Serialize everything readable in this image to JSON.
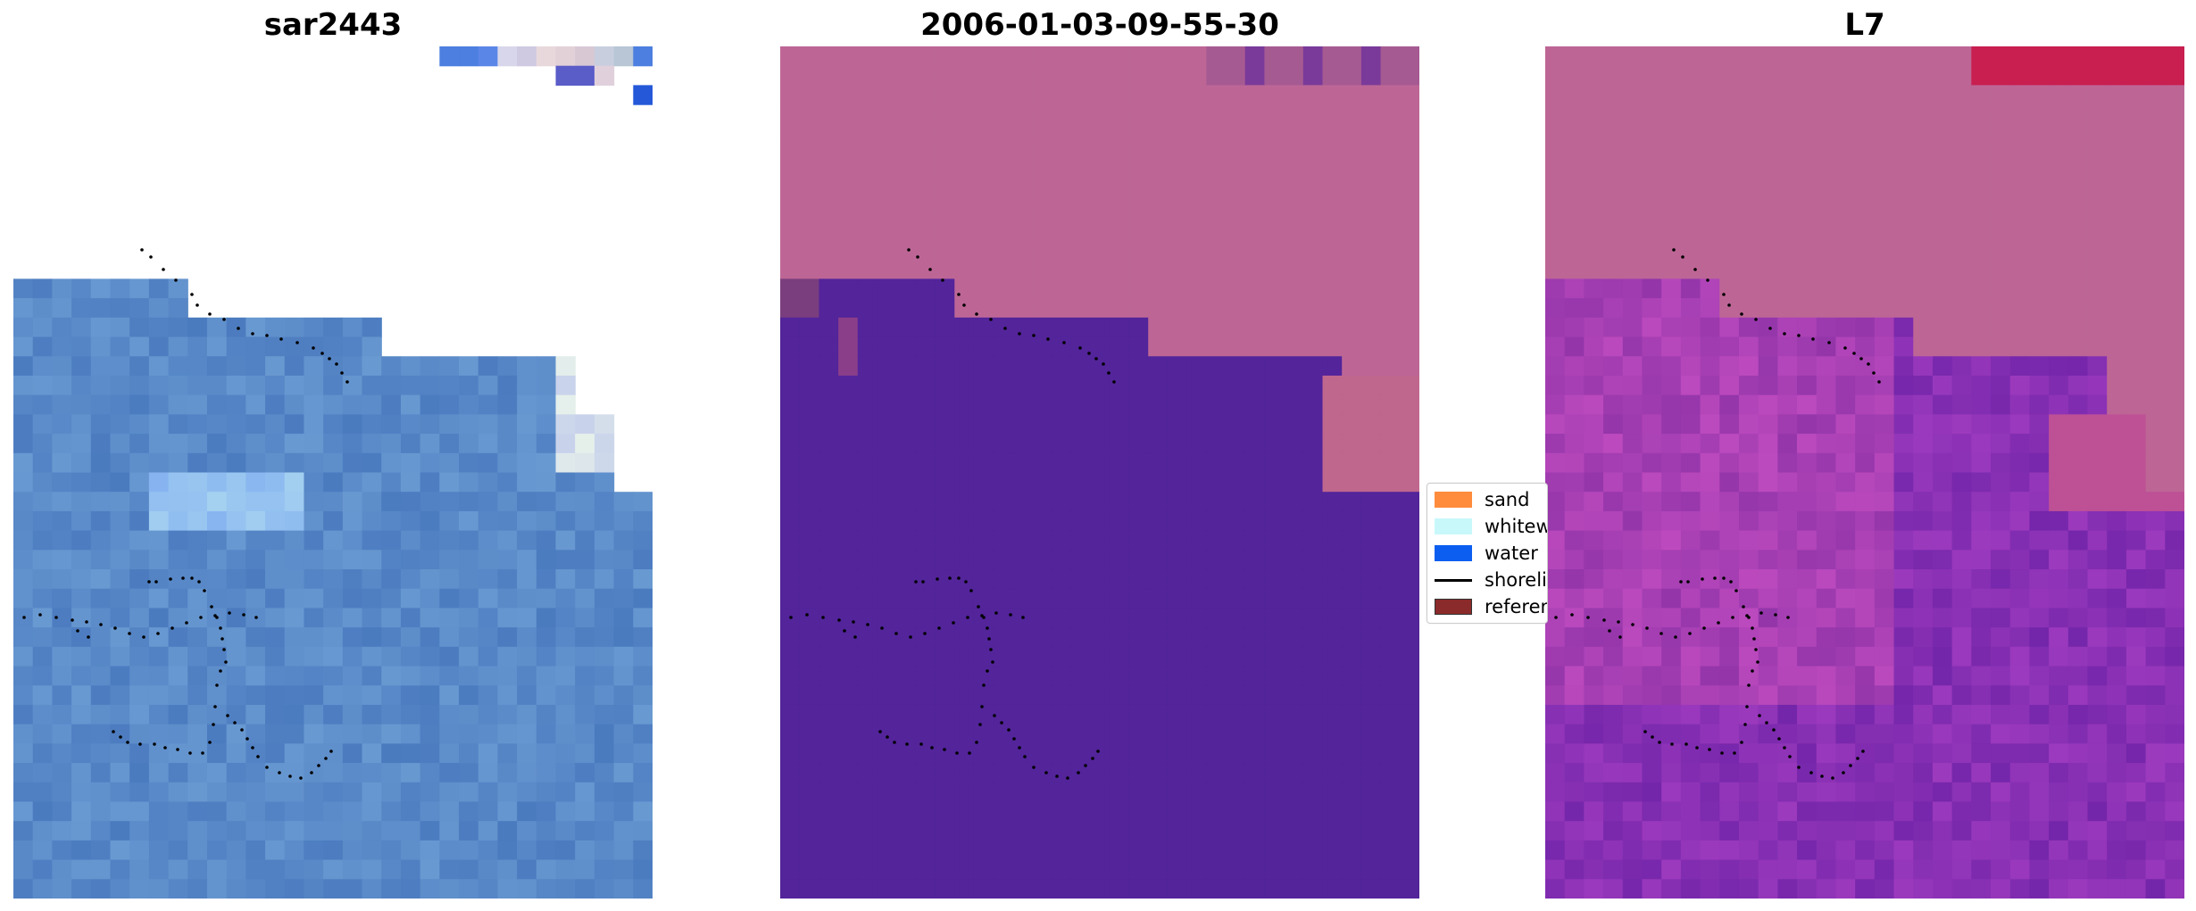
{
  "panels": [
    {
      "title": "sar2443"
    },
    {
      "title": "2006-01-03-09-55-30"
    },
    {
      "title": "L7"
    }
  ],
  "legend": {
    "items": [
      {
        "label": "sand",
        "color": "#ff8c3c",
        "kind": "patch"
      },
      {
        "label": "whitewater",
        "color": "#c8f8fa",
        "kind": "patch"
      },
      {
        "label": "water",
        "color": "#0b5ef0",
        "kind": "patch"
      },
      {
        "label": "shoreline",
        "color": "#000000",
        "kind": "line"
      },
      {
        "label": "reference shoreline",
        "color": "#8b2a2a",
        "kind": "patch"
      }
    ]
  },
  "colors": {
    "water_rgb": "#5a8cc8",
    "sand_class": "#bd6696",
    "water_class": "#53249a",
    "l7_sand": "#bd6696",
    "l7_water": "#6a1fb4",
    "nodata": "#ffffff"
  }
}
